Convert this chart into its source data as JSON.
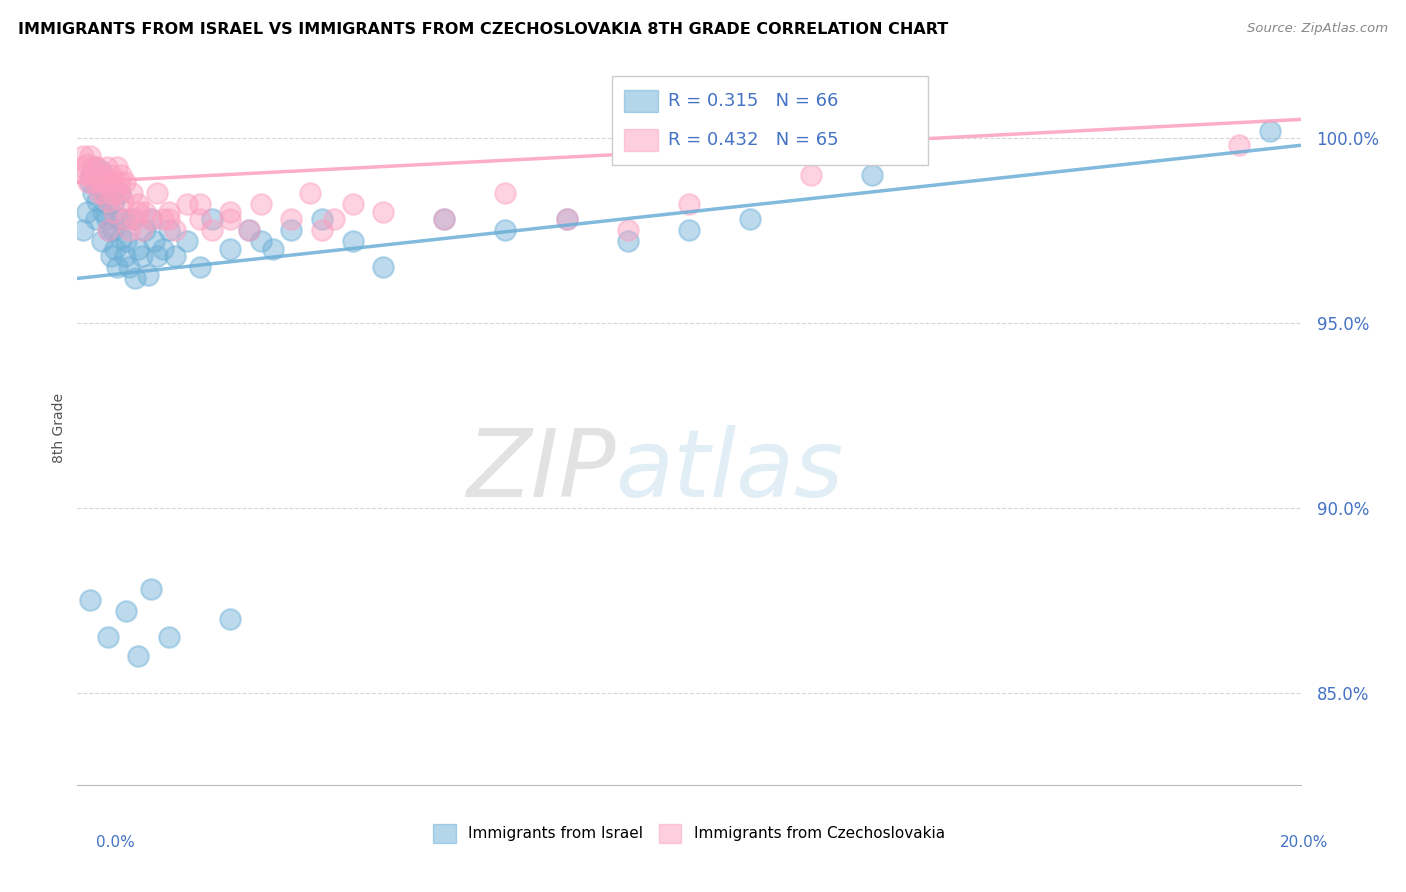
{
  "title": "IMMIGRANTS FROM ISRAEL VS IMMIGRANTS FROM CZECHOSLOVAKIA 8TH GRADE CORRELATION CHART",
  "source": "Source: ZipAtlas.com",
  "ylabel": "8th Grade",
  "xlim": [
    0.0,
    20.0
  ],
  "ylim": [
    82.5,
    101.8
  ],
  "y_ticks": [
    85.0,
    90.0,
    95.0,
    100.0
  ],
  "y_tick_labels": [
    "85.0%",
    "90.0%",
    "95.0%",
    "100.0%"
  ],
  "israel_color": "#6baed6",
  "czech_color": "#fc9272",
  "israel_R": 0.315,
  "israel_N": 66,
  "czech_R": 0.432,
  "czech_N": 65,
  "israel_scatter_x": [
    0.1,
    0.15,
    0.2,
    0.22,
    0.25,
    0.28,
    0.3,
    0.32,
    0.35,
    0.38,
    0.4,
    0.42,
    0.45,
    0.48,
    0.5,
    0.52,
    0.55,
    0.58,
    0.6,
    0.62,
    0.65,
    0.68,
    0.7,
    0.72,
    0.75,
    0.78,
    0.8,
    0.85,
    0.9,
    0.95,
    1.0,
    1.05,
    1.1,
    1.15,
    1.2,
    1.25,
    1.3,
    1.4,
    1.5,
    1.6,
    1.8,
    2.0,
    2.2,
    2.5,
    2.8,
    3.0,
    3.2,
    3.5,
    4.0,
    4.5,
    5.0,
    6.0,
    7.0,
    8.0,
    9.0,
    10.0,
    11.0,
    0.2,
    0.5,
    0.8,
    1.0,
    1.2,
    1.5,
    2.5,
    13.0,
    19.5
  ],
  "israel_scatter_y": [
    97.5,
    98.0,
    98.8,
    99.0,
    98.5,
    99.2,
    97.8,
    98.3,
    98.7,
    99.1,
    97.2,
    98.0,
    98.5,
    97.8,
    98.2,
    97.5,
    96.8,
    97.5,
    98.3,
    97.0,
    96.5,
    97.8,
    98.5,
    97.3,
    97.8,
    96.8,
    97.2,
    96.5,
    97.8,
    96.2,
    97.0,
    96.8,
    97.5,
    96.3,
    97.8,
    97.2,
    96.8,
    97.0,
    97.5,
    96.8,
    97.2,
    96.5,
    97.8,
    97.0,
    97.5,
    97.2,
    97.0,
    97.5,
    97.8,
    97.2,
    96.5,
    97.8,
    97.5,
    97.8,
    97.2,
    97.5,
    97.8,
    87.5,
    86.5,
    87.2,
    86.0,
    87.8,
    86.5,
    87.0,
    99.0,
    100.2
  ],
  "czech_scatter_x": [
    0.08,
    0.1,
    0.12,
    0.15,
    0.18,
    0.2,
    0.22,
    0.25,
    0.28,
    0.3,
    0.32,
    0.35,
    0.38,
    0.4,
    0.42,
    0.45,
    0.48,
    0.5,
    0.52,
    0.55,
    0.58,
    0.6,
    0.62,
    0.65,
    0.68,
    0.7,
    0.72,
    0.75,
    0.78,
    0.8,
    0.85,
    0.9,
    0.95,
    1.0,
    1.05,
    1.1,
    1.2,
    1.3,
    1.4,
    1.5,
    1.6,
    1.8,
    2.0,
    2.2,
    2.5,
    2.8,
    3.0,
    3.5,
    4.0,
    4.5,
    5.0,
    6.0,
    7.0,
    8.0,
    9.0,
    10.0,
    12.0,
    19.0,
    2.5,
    3.8,
    4.2,
    0.5,
    1.0,
    1.5,
    2.0
  ],
  "czech_scatter_y": [
    99.2,
    99.5,
    99.0,
    99.3,
    98.8,
    99.5,
    99.0,
    99.2,
    98.8,
    99.0,
    99.2,
    98.5,
    98.8,
    99.0,
    98.5,
    98.8,
    99.2,
    98.3,
    98.8,
    99.0,
    98.5,
    98.0,
    98.8,
    99.2,
    98.5,
    98.8,
    99.0,
    98.3,
    98.8,
    97.8,
    97.5,
    98.5,
    97.8,
    98.2,
    97.5,
    98.0,
    97.8,
    98.5,
    97.8,
    98.0,
    97.5,
    98.2,
    97.8,
    97.5,
    98.0,
    97.5,
    98.2,
    97.8,
    97.5,
    98.2,
    98.0,
    97.8,
    98.5,
    97.8,
    97.5,
    98.2,
    99.0,
    99.8,
    97.8,
    98.5,
    97.8,
    97.5,
    98.0,
    97.8,
    98.2
  ],
  "trend_israel_x0": 0.0,
  "trend_israel_y0": 96.2,
  "trend_israel_x1": 20.0,
  "trend_israel_y1": 99.8,
  "trend_czech_x0": 0.0,
  "trend_czech_y0": 98.8,
  "trend_czech_x1": 20.0,
  "trend_czech_y1": 100.5
}
